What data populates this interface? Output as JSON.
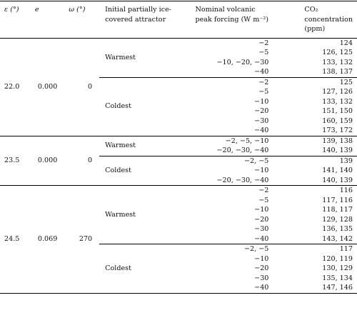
{
  "headers": {
    "eps": "ε (°)",
    "e": "e",
    "omega": "ω (°)",
    "attractor": "Initial partially ice-covered attractor",
    "forcing": "Nominal volcanic peak forcing (W m⁻²)",
    "co2": "CO₂ concentration (ppm)"
  },
  "groups": [
    {
      "eps": "22.0",
      "e": "0.000",
      "omega": "0",
      "attractors": [
        {
          "name": "Warmest",
          "rows": [
            {
              "forcing": "−2",
              "co2": "124"
            },
            {
              "forcing": "−5",
              "co2": "126, 125"
            },
            {
              "forcing": "−10, −20, −30",
              "co2": "133, 132"
            },
            {
              "forcing": "−40",
              "co2": "138, 137"
            }
          ]
        },
        {
          "name": "Coldest",
          "rows": [
            {
              "forcing": "−2",
              "co2": "125"
            },
            {
              "forcing": "−5",
              "co2": "127, 126"
            },
            {
              "forcing": "−10",
              "co2": "133, 132"
            },
            {
              "forcing": "−20",
              "co2": "151, 150"
            },
            {
              "forcing": "−30",
              "co2": "160, 159"
            },
            {
              "forcing": "−40",
              "co2": "173, 172"
            }
          ]
        }
      ]
    },
    {
      "eps": "23.5",
      "e": "0.000",
      "omega": "0",
      "attractors": [
        {
          "name": "Warmest",
          "rows": [
            {
              "forcing": "−2, −5, −10",
              "co2": "139, 138"
            },
            {
              "forcing": "−20, −30, −40",
              "co2": "140, 139"
            }
          ]
        },
        {
          "name": "Coldest",
          "rows": [
            {
              "forcing": "−2, −5",
              "co2": "139"
            },
            {
              "forcing": "−10",
              "co2": "141, 140"
            },
            {
              "forcing": "−20, −30, −40",
              "co2": "140, 139"
            }
          ]
        }
      ]
    },
    {
      "eps": "24.5",
      "e": "0.069",
      "omega": "270",
      "attractors": [
        {
          "name": "Warmest",
          "rows": [
            {
              "forcing": "−2",
              "co2": "116"
            },
            {
              "forcing": "−5",
              "co2": "117, 116"
            },
            {
              "forcing": "−10",
              "co2": "118, 117"
            },
            {
              "forcing": "−20",
              "co2": "129, 128"
            },
            {
              "forcing": "−30",
              "co2": "136, 135"
            },
            {
              "forcing": "−40",
              "co2": "143, 142"
            }
          ]
        },
        {
          "name": "Coldest",
          "rows": [
            {
              "forcing": "−2, −5",
              "co2": "117"
            },
            {
              "forcing": "−10",
              "co2": "120, 119"
            },
            {
              "forcing": "−20",
              "co2": "130, 129"
            },
            {
              "forcing": "−30",
              "co2": "135, 134"
            },
            {
              "forcing": "−40",
              "co2": "147, 146"
            }
          ]
        }
      ]
    }
  ]
}
